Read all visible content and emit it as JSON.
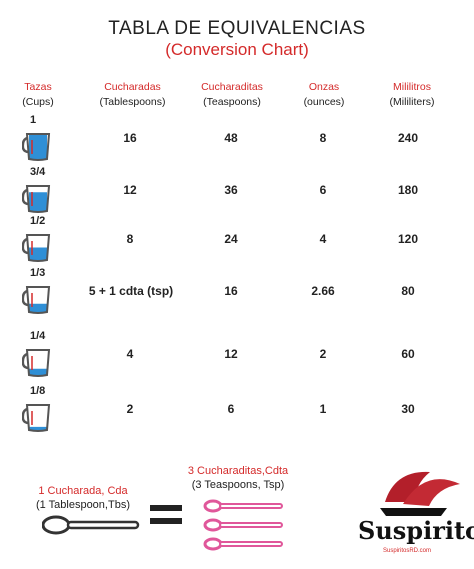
{
  "title": "TABLA DE EQUIVALENCIAS",
  "subtitle": "(Conversion Chart)",
  "headers": [
    {
      "es": "Tazas",
      "en": "(Cups)"
    },
    {
      "es": "Cucharadas",
      "en": "(Tablespoons)"
    },
    {
      "es": "Cucharaditas",
      "en": "(Teaspoons)"
    },
    {
      "es": "Onzas",
      "en": "(ounces)"
    },
    {
      "es": "Mililitros",
      "en": "(Mililiters)"
    }
  ],
  "rows": [
    {
      "cups": "1",
      "fill": 1.0,
      "tbs": "16",
      "tsp": "48",
      "oz": "8",
      "ml": "240"
    },
    {
      "cups": "3/4",
      "fill": 0.75,
      "tbs": "12",
      "tsp": "36",
      "oz": "6",
      "ml": "180"
    },
    {
      "cups": "1/2",
      "fill": 0.5,
      "tbs": "8",
      "tsp": "24",
      "oz": "4",
      "ml": "120"
    },
    {
      "cups": "1/3",
      "fill": 0.33,
      "tbs": "5 + 1 cdta (tsp)",
      "tsp": "16",
      "oz": "2.66",
      "ml": "80"
    },
    {
      "cups": "1/4",
      "fill": 0.25,
      "tbs": "4",
      "tsp": "12",
      "oz": "2",
      "ml": "60"
    },
    {
      "cups": "1/8",
      "fill": 0.125,
      "tbs": "2",
      "tsp": "6",
      "oz": "1",
      "ml": "30"
    }
  ],
  "bottom": {
    "left_es": "1 Cucharada, Cda",
    "left_en": "(1 Tablespoon,Tbs)",
    "mid_es": "3 Cucharaditas,Cdta",
    "mid_en": "(3 Teaspoons, Tsp)"
  },
  "logo": {
    "name": "Suspiritos",
    "site": "SuspiritosRD.com"
  },
  "colors": {
    "accent": "#d42a2a",
    "water": "#2f8fd6",
    "spoon_tsp": "#e0579a",
    "spoon_tbs": "#333333"
  }
}
